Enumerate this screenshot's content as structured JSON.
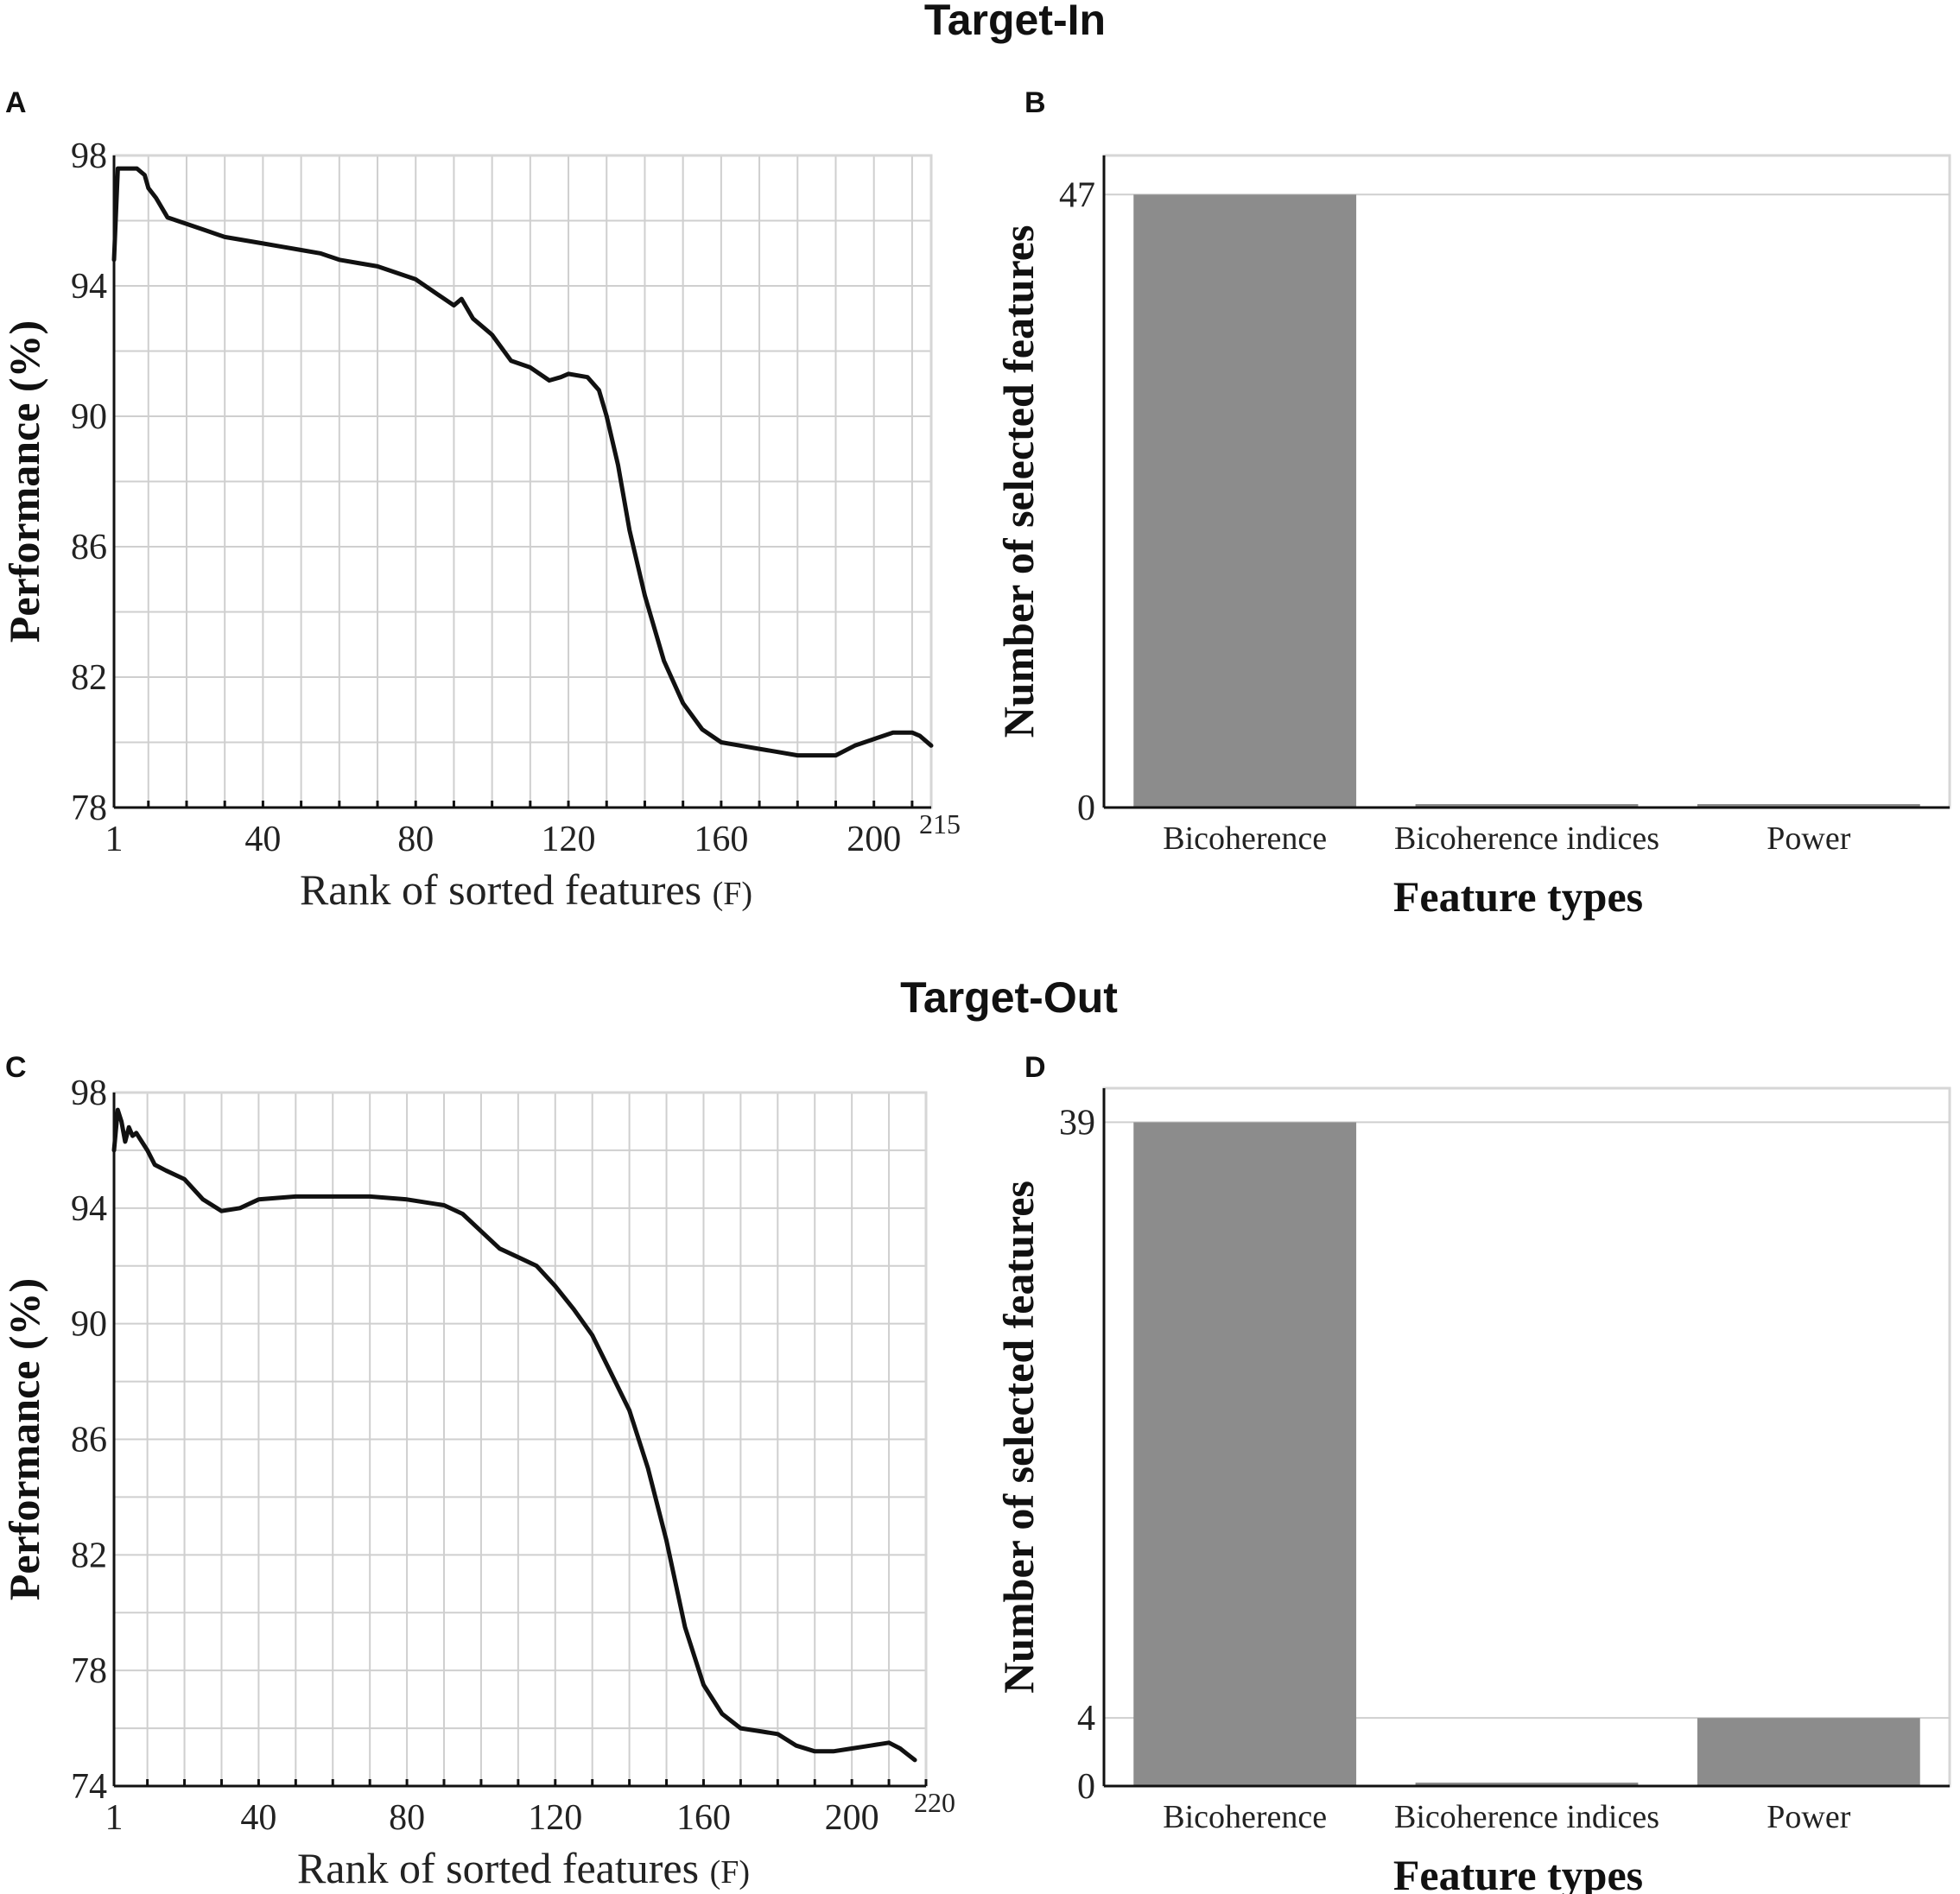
{
  "sections": {
    "top": "Target-In",
    "bottom": "Target-Out"
  },
  "chart_data": [
    {
      "panel": "A",
      "type": "line",
      "title": "",
      "xlabel": "Rank of sorted features",
      "xlabel_unit": "(F)",
      "ylabel": "Performance (%)",
      "xlim": [
        1,
        215
      ],
      "ylim": [
        78,
        98
      ],
      "xticks": [
        1,
        40,
        80,
        120,
        160,
        200
      ],
      "xtick_end_label": "215",
      "yticks": [
        78,
        82,
        86,
        90,
        94,
        98
      ],
      "grid": true,
      "x": [
        1,
        2,
        3,
        5,
        7,
        9,
        10,
        12,
        15,
        20,
        25,
        30,
        35,
        40,
        45,
        50,
        55,
        60,
        65,
        70,
        75,
        80,
        85,
        90,
        92,
        95,
        100,
        105,
        110,
        115,
        118,
        120,
        125,
        128,
        130,
        133,
        136,
        140,
        145,
        150,
        155,
        160,
        165,
        170,
        175,
        180,
        185,
        190,
        195,
        200,
        205,
        210,
        212,
        215
      ],
      "y": [
        94.8,
        97.6,
        97.6,
        97.6,
        97.6,
        97.4,
        97.0,
        96.7,
        96.1,
        95.9,
        95.7,
        95.5,
        95.4,
        95.3,
        95.2,
        95.1,
        95.0,
        94.8,
        94.7,
        94.6,
        94.4,
        94.2,
        93.8,
        93.4,
        93.6,
        93.0,
        92.5,
        91.7,
        91.5,
        91.1,
        91.2,
        91.3,
        91.2,
        90.8,
        90.0,
        88.5,
        86.5,
        84.5,
        82.5,
        81.2,
        80.4,
        80.0,
        79.9,
        79.8,
        79.7,
        79.6,
        79.6,
        79.6,
        79.9,
        80.1,
        80.3,
        80.3,
        80.2,
        79.9
      ]
    },
    {
      "panel": "B",
      "type": "bar",
      "title": "",
      "xlabel": "Feature types",
      "ylabel": "Number of selected features",
      "categories": [
        "Bicoherence",
        "Bicoherence indices",
        "Power"
      ],
      "values": [
        47,
        0,
        0
      ],
      "ylim": [
        0,
        50
      ],
      "yticks": [
        0,
        47
      ],
      "grid": true
    },
    {
      "panel": "C",
      "type": "line",
      "title": "",
      "xlabel": "Rank of sorted features",
      "xlabel_unit": "(F)",
      "ylabel": "Performance (%)",
      "xlim": [
        1,
        220
      ],
      "ylim": [
        74,
        98
      ],
      "xticks": [
        1,
        40,
        80,
        120,
        160,
        200
      ],
      "xtick_end_label": "220",
      "yticks": [
        74,
        78,
        82,
        86,
        90,
        94,
        98
      ],
      "grid": true,
      "x": [
        1,
        2,
        3,
        4,
        5,
        6,
        7,
        8,
        10,
        12,
        15,
        20,
        25,
        30,
        35,
        40,
        50,
        60,
        70,
        80,
        90,
        95,
        100,
        105,
        110,
        115,
        120,
        125,
        130,
        135,
        140,
        145,
        150,
        155,
        160,
        165,
        170,
        175,
        180,
        185,
        190,
        195,
        200,
        205,
        210,
        213,
        215,
        217
      ],
      "y": [
        96.0,
        97.4,
        97.0,
        96.3,
        96.8,
        96.5,
        96.6,
        96.4,
        96.0,
        95.5,
        95.3,
        95.0,
        94.3,
        93.9,
        94.0,
        94.3,
        94.4,
        94.4,
        94.4,
        94.3,
        94.1,
        93.8,
        93.2,
        92.6,
        92.3,
        92.0,
        91.3,
        90.5,
        89.6,
        88.3,
        87.0,
        85.0,
        82.5,
        79.5,
        77.5,
        76.5,
        76.0,
        75.9,
        75.8,
        75.4,
        75.2,
        75.2,
        75.3,
        75.4,
        75.5,
        75.3,
        75.1,
        74.9
      ]
    },
    {
      "panel": "D",
      "type": "bar",
      "title": "",
      "xlabel": "Feature types",
      "ylabel": "Number of selected features",
      "categories": [
        "Bicoherence",
        "Bicoherence indices",
        "Power"
      ],
      "values": [
        39,
        0,
        4
      ],
      "ylim": [
        0,
        41
      ],
      "yticks": [
        0,
        4,
        39
      ],
      "grid": true
    }
  ]
}
